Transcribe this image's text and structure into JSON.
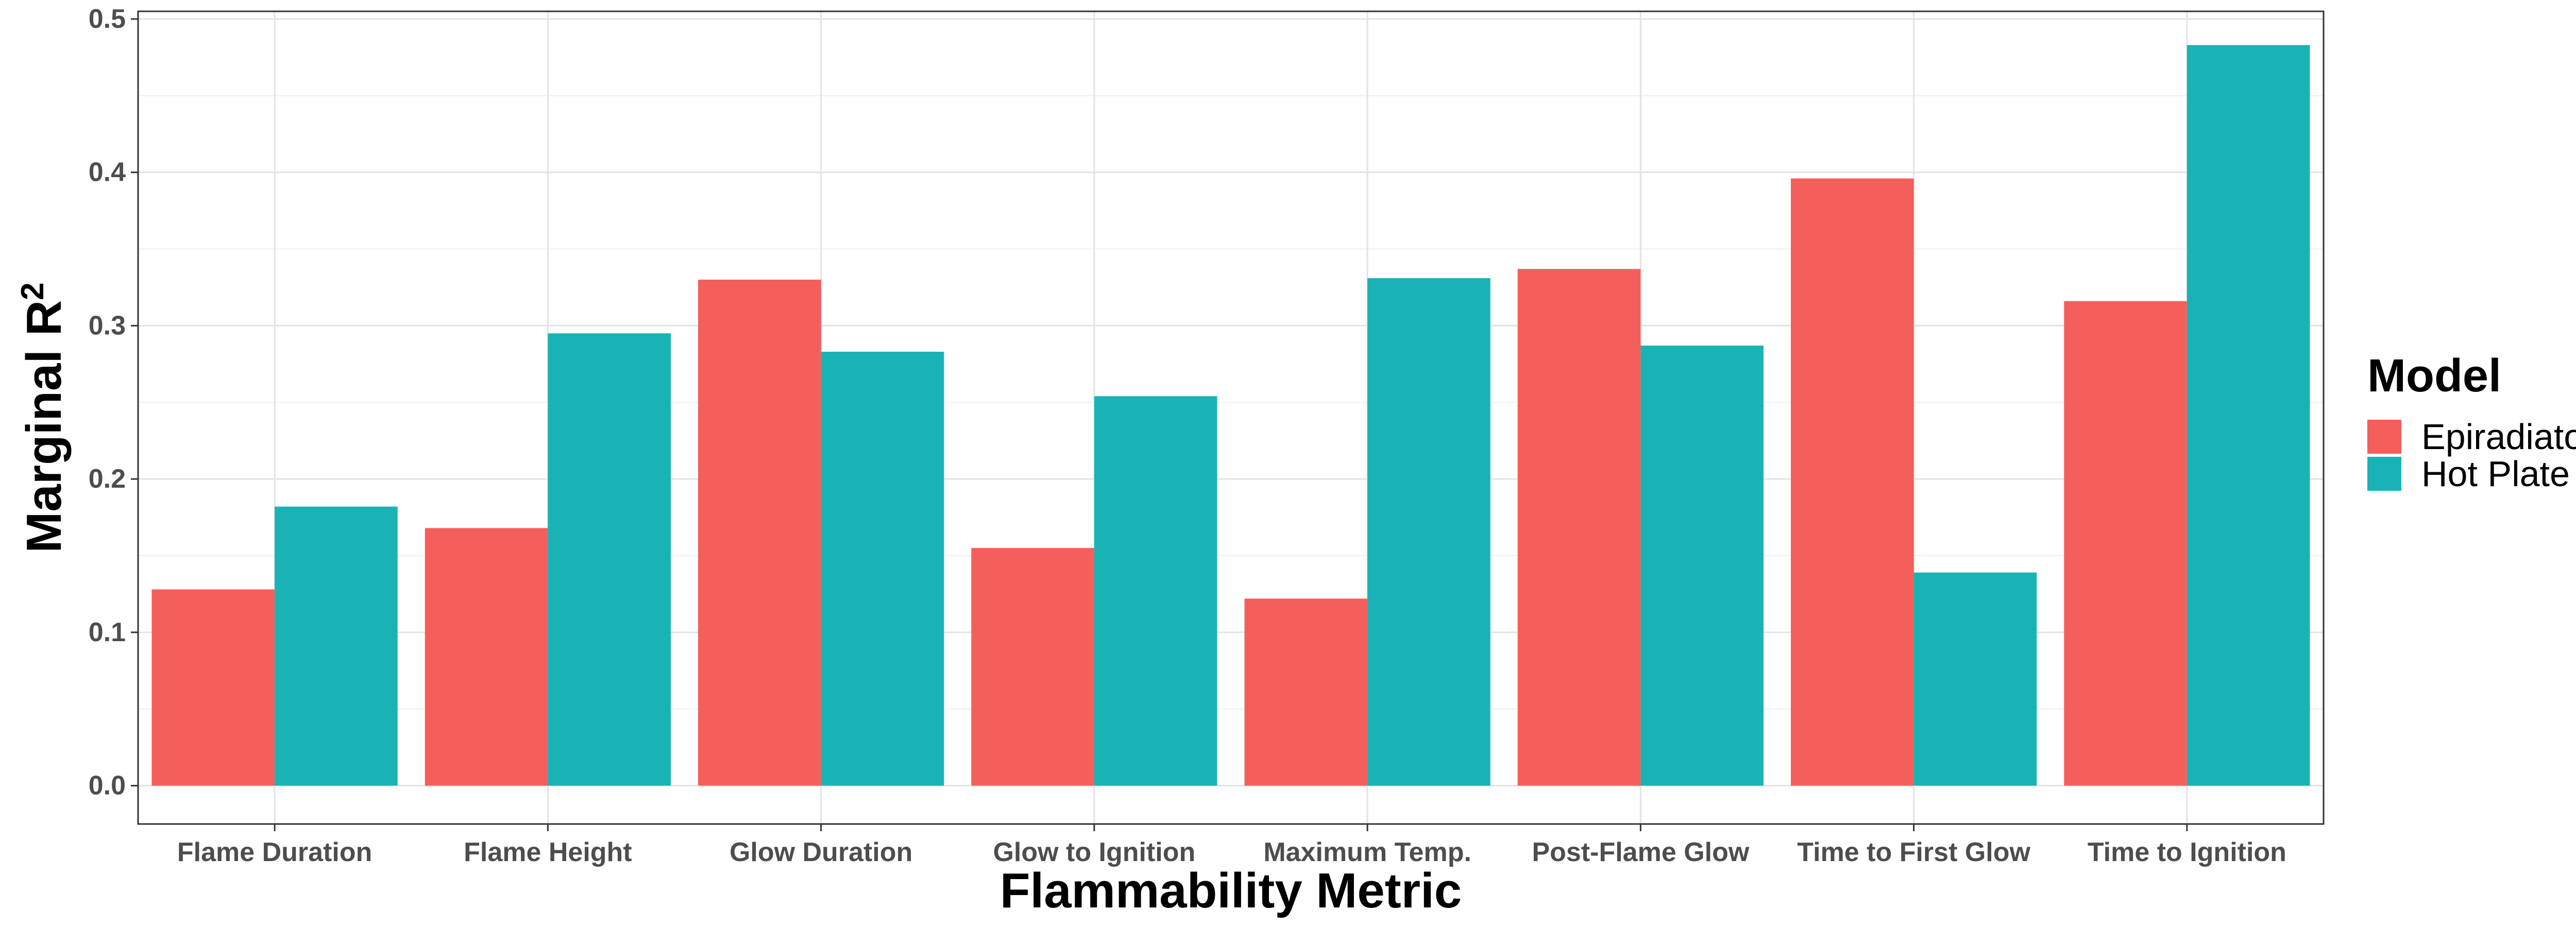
{
  "chart_data": {
    "type": "bar",
    "xlabel": "Flammability Metric",
    "ylabel": "Marginal R",
    "ylabel_superscript": "2",
    "ylim": [
      -0.025,
      0.505
    ],
    "yticks": [
      "0.0",
      "0.1",
      "0.2",
      "0.3",
      "0.4",
      "0.5"
    ],
    "grid": true,
    "legend": {
      "title": "Model",
      "position": "right"
    },
    "categories": [
      "Flame Duration",
      "Flame Height",
      "Glow Duration",
      "Glow to Ignition",
      "Maximum Temp.",
      "Post-Flame Glow",
      "Time to First Glow",
      "Time to Ignition"
    ],
    "series": [
      {
        "name": "Epiradiator",
        "color": "#F45F5B",
        "values": [
          0.128,
          0.168,
          0.33,
          0.155,
          0.122,
          0.337,
          0.396,
          0.316
        ]
      },
      {
        "name": "Hot Plate",
        "color": "#19B3B6",
        "values": [
          0.182,
          0.295,
          0.283,
          0.254,
          0.331,
          0.287,
          0.139,
          0.483
        ]
      }
    ]
  }
}
